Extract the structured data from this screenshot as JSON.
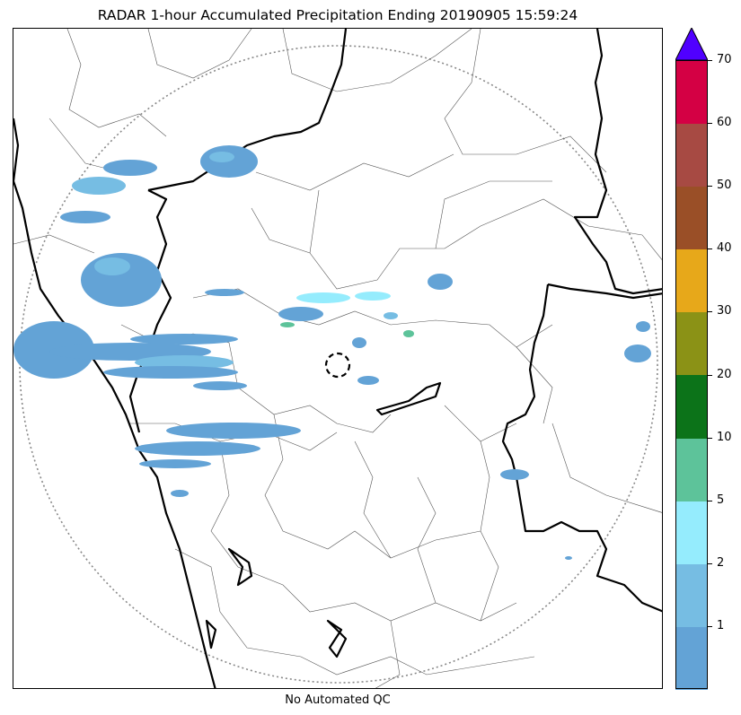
{
  "title": "RADAR 1-hour Accumulated Precipitation Ending 20190905 15:59:24",
  "caption": "No Automated QC",
  "colorbar": {
    "colors": [
      "#63a3d6",
      "#76bde3",
      "#95ecfd",
      "#5dc39a",
      "#0c7319",
      "#8b9216",
      "#e7a81a",
      "#9a4f27",
      "#a74a43",
      "#d40044"
    ],
    "over_color": "#5000ff",
    "tick_labels": [
      "1",
      "2",
      "5",
      "10",
      "20",
      "30",
      "40",
      "50",
      "60",
      "70"
    ]
  },
  "legend_colors": {
    "light_rain": "#63a3d6",
    "moderate": "#76bde3",
    "cyan": "#95ecfd",
    "green": "#5dc39a"
  }
}
